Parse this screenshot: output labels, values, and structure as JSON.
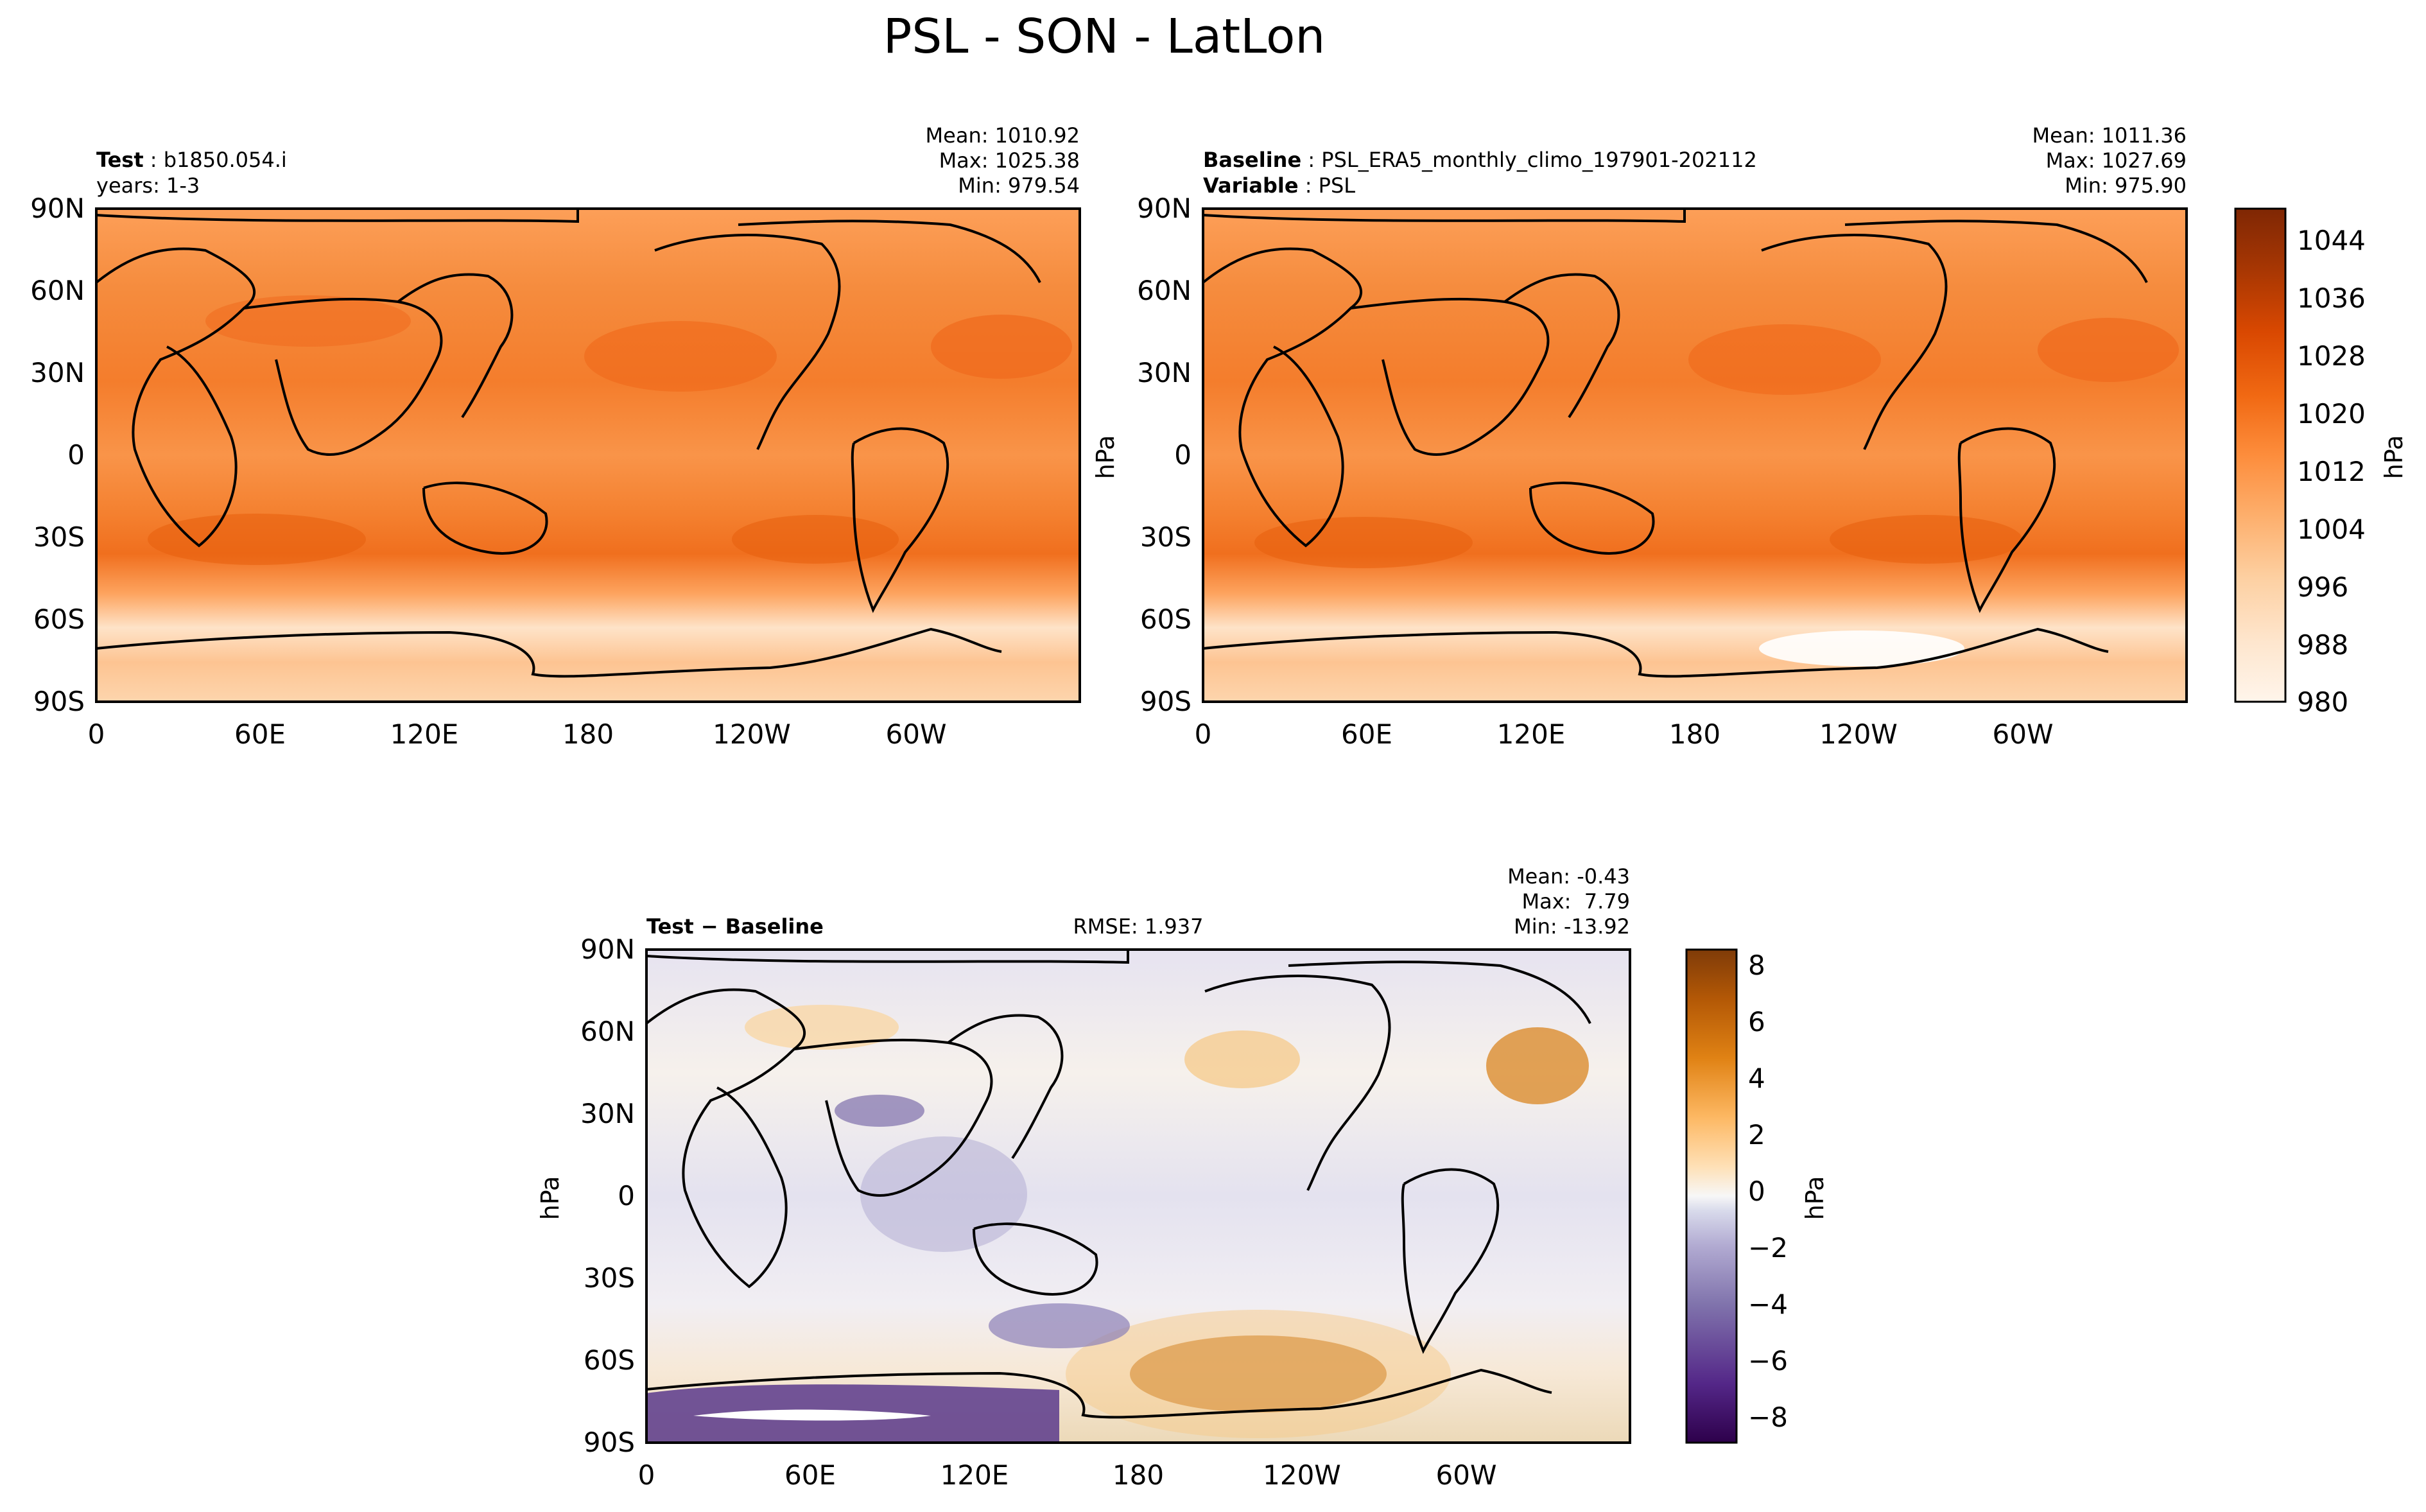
{
  "figure_title": "PSL - SON - LatLon",
  "colors": {
    "frame": "#000000",
    "coast": "#000000",
    "psl_scale": [
      "#fff5eb",
      "#fee6ce",
      "#fdd0a2",
      "#fdae6b",
      "#fd8d3c",
      "#f16913",
      "#d94801",
      "#a63603",
      "#7f2704"
    ],
    "diff_neg": [
      "#f7f7f7",
      "#d8daeb",
      "#b2abd2",
      "#8073ac",
      "#542788",
      "#2d004b"
    ],
    "diff_pos": [
      "#f7f7f7",
      "#fee0b6",
      "#fdb863",
      "#e08214",
      "#b35806",
      "#7f3b08"
    ]
  },
  "panels": {
    "test": {
      "label_bold": "Test",
      "label_text": "b1850.054.i",
      "sub_text": "years: 1-3",
      "mean_text": "Mean: 1010.92",
      "max_text": "Max: 1025.38",
      "min_text": "Min: 979.54"
    },
    "baseline": {
      "label_bold": "Baseline",
      "label_text": "PSL_ERA5_monthly_climo_197901-202112",
      "var_bold": "Variable",
      "var_text": "PSL",
      "mean_text": "Mean: 1011.36",
      "max_text": "Max: 1027.69",
      "min_text": "Min: 975.90"
    },
    "diff": {
      "label_bold": "Test − Baseline",
      "rmse_text": "RMSE: 1.937",
      "mean_text": "Mean: -0.43",
      "max_text": "Max:  7.79",
      "min_text": "Min: -13.92"
    }
  },
  "axes": {
    "lat_ticks": [
      "90N",
      "60N",
      "30N",
      "0",
      "30S",
      "60S",
      "90S"
    ],
    "lon_ticks": [
      "0",
      "60E",
      "120E",
      "180",
      "120W",
      "60W"
    ]
  },
  "colorbars": {
    "psl": {
      "units": "hPa",
      "ticks": [
        "1044",
        "1036",
        "1028",
        "1020",
        "1012",
        "1004",
        "996",
        "988",
        "980"
      ]
    },
    "diff": {
      "units": "hPa",
      "ticks": [
        "8",
        "6",
        "4",
        "2",
        "0",
        "−2",
        "−4",
        "−6",
        "−8"
      ]
    }
  },
  "side_labels": {
    "baseline_units": "hPa",
    "diff_units": "hPa"
  },
  "chart_data": [
    {
      "type": "heatmap",
      "title": "Test: b1850.054.i (years: 1-3)",
      "variable": "PSL",
      "units": "hPa",
      "xlim": [
        0,
        360
      ],
      "ylim": [
        -90,
        90
      ],
      "xticks": [
        "0",
        "60E",
        "120E",
        "180",
        "120W",
        "60W"
      ],
      "yticks": [
        "90N",
        "60N",
        "30N",
        "0",
        "30S",
        "60S",
        "90S"
      ],
      "mean": 1010.92,
      "max": 1025.38,
      "min": 979.54,
      "colorbar_range": [
        980,
        1048
      ],
      "zonal_profile_hpa": {
        "lat": [
          -90,
          -75,
          -60,
          -45,
          -30,
          -15,
          0,
          15,
          30,
          45,
          60,
          75,
          90
        ],
        "value": [
          992,
          986,
          990,
          1010,
          1018,
          1014,
          1011,
          1012,
          1016,
          1016,
          1015,
          1014,
          1012
        ]
      }
    },
    {
      "type": "heatmap",
      "title": "Baseline: PSL_ERA5_monthly_climo_197901-202112",
      "variable": "PSL",
      "units": "hPa",
      "xlim": [
        0,
        360
      ],
      "ylim": [
        -90,
        90
      ],
      "xticks": [
        "0",
        "60E",
        "120E",
        "180",
        "120W",
        "60W"
      ],
      "yticks": [
        "90N",
        "60N",
        "30N",
        "0",
        "30S",
        "60S",
        "90S"
      ],
      "mean": 1011.36,
      "max": 1027.69,
      "min": 975.9,
      "colorbar_range": [
        980,
        1048
      ],
      "zonal_profile_hpa": {
        "lat": [
          -90,
          -75,
          -60,
          -45,
          -30,
          -15,
          0,
          15,
          30,
          45,
          60,
          75,
          90
        ],
        "value": [
          994,
          985,
          988,
          1010,
          1019,
          1014,
          1011,
          1012,
          1017,
          1016,
          1015,
          1014,
          1012
        ]
      }
    },
    {
      "type": "heatmap",
      "title": "Test − Baseline",
      "variable": "PSL difference",
      "units": "hPa",
      "xlim": [
        0,
        360
      ],
      "ylim": [
        -90,
        90
      ],
      "xticks": [
        "0",
        "60E",
        "120E",
        "180",
        "120W",
        "60W"
      ],
      "yticks": [
        "90N",
        "60N",
        "30N",
        "0",
        "30S",
        "60S",
        "90S"
      ],
      "mean": -0.43,
      "max": 7.79,
      "min": -13.92,
      "rmse": 1.937,
      "colorbar_range": [
        -9,
        9
      ]
    }
  ]
}
